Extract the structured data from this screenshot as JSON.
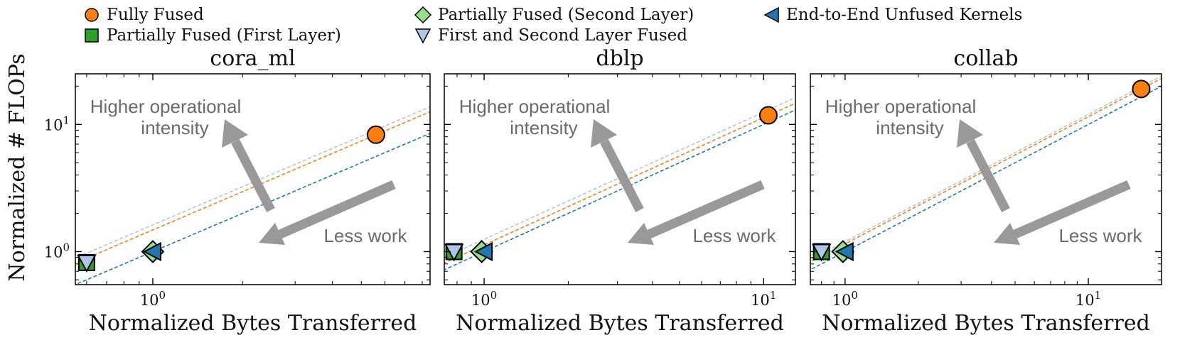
{
  "legend": [
    {
      "label": "Fully Fused",
      "marker": "circle",
      "color": "#ff7f0e"
    },
    {
      "label": "Partially Fused (First Layer)",
      "marker": "square",
      "color": "#2ca02c"
    },
    {
      "label": "Partially Fused (Second Layer)",
      "marker": "diamond",
      "color": "#98df8a"
    },
    {
      "label": "First and Second Layer Fused",
      "marker": "triangle-down",
      "color": "#aec7e8"
    },
    {
      "label": "End-to-End Unfused Kernels",
      "marker": "triangle-left",
      "color": "#1f77b4"
    }
  ],
  "ylabel": "Normalized # FLOPs",
  "xlabel": "Normalized Bytes Transferred",
  "annotations": {
    "higher_line1": "Higher operational",
    "higher_line2": "intensity",
    "less_work": "Less work"
  },
  "chart_data": [
    {
      "type": "scatter",
      "title": "cora_ml",
      "xscale": "log",
      "yscale": "log",
      "xlim": [
        0.55,
        8.5
      ],
      "ylim": [
        0.55,
        25
      ],
      "x_ticks": [
        {
          "value": 1,
          "label": "10^0"
        }
      ],
      "y_ticks": [
        {
          "value": 1,
          "label": "10^0"
        },
        {
          "value": 10,
          "label": "10^1"
        }
      ],
      "series": [
        {
          "name": "Fully Fused",
          "x": [
            5.6
          ],
          "y": [
            8.3
          ]
        },
        {
          "name": "Partially Fused (First Layer)",
          "x": [
            0.6
          ],
          "y": [
            0.82
          ]
        },
        {
          "name": "Partially Fused (Second Layer)",
          "x": [
            1.0
          ],
          "y": [
            1.0
          ]
        },
        {
          "name": "First and Second Layer Fused",
          "x": [
            0.6
          ],
          "y": [
            0.82
          ]
        },
        {
          "name": "End-to-End Unfused Kernels",
          "x": [
            1.0
          ],
          "y": [
            1.0
          ]
        }
      ],
      "ref_lines": [
        {
          "color": "#aec7e8",
          "slope_y_over_x": 1.62
        },
        {
          "color": "#ff7f0e",
          "slope_y_over_x": 1.48
        },
        {
          "color": "#1f77b4",
          "slope_y_over_x": 1.0
        }
      ]
    },
    {
      "type": "scatter",
      "title": "dblp",
      "xscale": "log",
      "yscale": "log",
      "xlim": [
        0.72,
        13
      ],
      "ylim": [
        0.55,
        25
      ],
      "x_ticks": [
        {
          "value": 1,
          "label": "10^0"
        },
        {
          "value": 10,
          "label": "10^1"
        }
      ],
      "y_ticks": [
        {
          "value": 1,
          "label": "10^0"
        },
        {
          "value": 10,
          "label": "10^1"
        }
      ],
      "series": [
        {
          "name": "Fully Fused",
          "x": [
            10.4
          ],
          "y": [
            11.8
          ]
        },
        {
          "name": "Partially Fused (First Layer)",
          "x": [
            0.78
          ],
          "y": [
            1.0
          ]
        },
        {
          "name": "Partially Fused (Second Layer)",
          "x": [
            0.98
          ],
          "y": [
            1.0
          ]
        },
        {
          "name": "First and Second Layer Fused",
          "x": [
            0.78
          ],
          "y": [
            1.0
          ]
        },
        {
          "name": "End-to-End Unfused Kernels",
          "x": [
            1.0
          ],
          "y": [
            1.0
          ]
        }
      ],
      "ref_lines": [
        {
          "color": "#aec7e8",
          "slope_y_over_x": 1.25
        },
        {
          "color": "#ff7f0e",
          "slope_y_over_x": 1.13
        },
        {
          "color": "#1f77b4",
          "slope_y_over_x": 1.0
        }
      ]
    },
    {
      "type": "scatter",
      "title": "collab",
      "xscale": "log",
      "yscale": "log",
      "xlim": [
        0.72,
        20
      ],
      "ylim": [
        0.55,
        25
      ],
      "x_ticks": [
        {
          "value": 1,
          "label": "10^0"
        },
        {
          "value": 10,
          "label": "10^1"
        }
      ],
      "y_ticks": [
        {
          "value": 1,
          "label": "10^0"
        },
        {
          "value": 10,
          "label": "10^1"
        }
      ],
      "series": [
        {
          "name": "Fully Fused",
          "x": [
            16.5
          ],
          "y": [
            19.0
          ]
        },
        {
          "name": "Partially Fused (First Layer)",
          "x": [
            0.8
          ],
          "y": [
            1.0
          ]
        },
        {
          "name": "Partially Fused (Second Layer)",
          "x": [
            0.98
          ],
          "y": [
            1.0
          ]
        },
        {
          "name": "First and Second Layer Fused",
          "x": [
            0.8
          ],
          "y": [
            1.0
          ]
        },
        {
          "name": "End-to-End Unfused Kernels",
          "x": [
            1.0
          ],
          "y": [
            1.0
          ]
        }
      ],
      "ref_lines": [
        {
          "color": "#aec7e8",
          "slope_y_over_x": 1.2
        },
        {
          "color": "#ff7f0e",
          "slope_y_over_x": 1.15
        },
        {
          "color": "#1f77b4",
          "slope_y_over_x": 1.0
        }
      ]
    }
  ]
}
